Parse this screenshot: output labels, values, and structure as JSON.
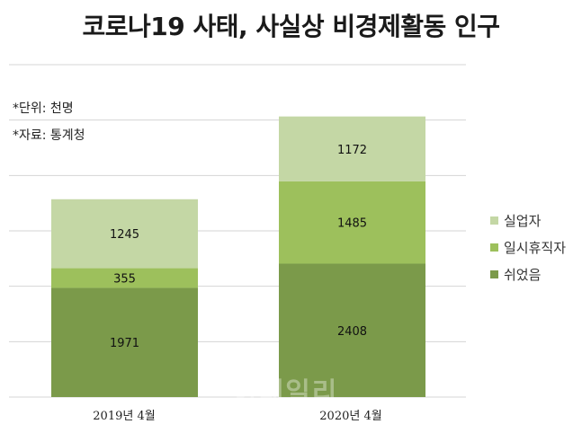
{
  "title": "코로나19 사태, 사실상 비경제활동 인구",
  "notes": {
    "unit": "*단위: 천명",
    "source": "*자료: 통계청"
  },
  "watermark": "이데일리",
  "colors": {
    "unemployed": "#c4d7a5",
    "temporary_leave": "#9dc05c",
    "resting": "#7b9a4a",
    "grid": "#d4d4d4"
  },
  "chart_data": {
    "type": "bar",
    "stacked": true,
    "categories": [
      "2019년 4월",
      "2020년 4월"
    ],
    "series": [
      {
        "name": "쉬었음",
        "values": [
          1971,
          2408
        ]
      },
      {
        "name": "일시휴직자",
        "values": [
          355,
          1485
        ]
      },
      {
        "name": "실업자",
        "values": [
          1245,
          1172
        ]
      }
    ],
    "legend": [
      "실업자",
      "일시휴직자",
      "쉬었음"
    ],
    "ylim": [
      0,
      6000
    ],
    "grid": true,
    "legend_position": "right"
  }
}
